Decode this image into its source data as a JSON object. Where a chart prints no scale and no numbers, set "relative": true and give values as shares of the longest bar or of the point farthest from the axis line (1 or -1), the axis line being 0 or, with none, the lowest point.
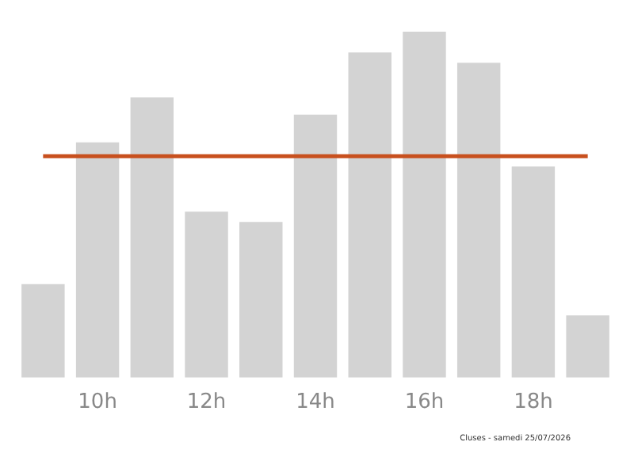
{
  "chart_data": {
    "type": "bar",
    "relative": true,
    "categories": [
      null,
      "10h",
      null,
      "12h",
      null,
      "14h",
      null,
      "16h",
      null,
      "18h",
      null
    ],
    "values": [
      0.27,
      0.68,
      0.81,
      0.48,
      0.45,
      0.76,
      0.94,
      1,
      0.91,
      0.61,
      0.18
    ],
    "color": "#d3d3d3",
    "ref_lines": [
      {
        "axis": "y",
        "value": 0.64,
        "color": "#c8501e"
      }
    ],
    "annotations": [
      "Cluses - samedi 25/07/2026"
    ],
    "grid": false,
    "legend": false
  }
}
